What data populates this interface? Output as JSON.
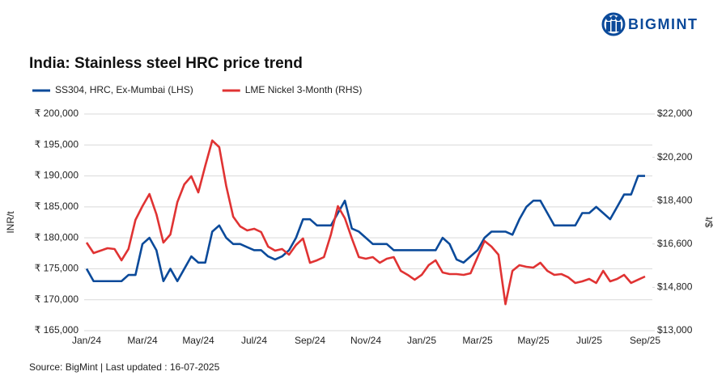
{
  "brand": "BIGMINT",
  "source": "Source: BigMint | Last updated : 16-07-2025",
  "chart_data": {
    "type": "line",
    "title": "India: Stainless steel HRC price trend",
    "y_label": "INR/t",
    "y2_label": "$/t",
    "categories": [
      "Jan/24",
      null,
      null,
      null,
      null,
      null,
      null,
      null,
      "Mar/24",
      null,
      null,
      null,
      null,
      null,
      null,
      null,
      "May/24",
      null,
      null,
      null,
      null,
      null,
      null,
      null,
      "Jul/24",
      null,
      null,
      null,
      null,
      null,
      null,
      null,
      "Sep/24",
      null,
      null,
      null,
      null,
      null,
      null,
      null,
      "Nov/24",
      null,
      null,
      null,
      null,
      null,
      null,
      null,
      "Jan/25",
      null,
      null,
      null,
      null,
      null,
      null,
      null,
      "Mar/25",
      null,
      null,
      null,
      null,
      null,
      null,
      null,
      "May/25",
      null,
      null,
      null,
      null,
      null,
      null,
      null,
      "Jul/25",
      null,
      null,
      null,
      null,
      null,
      null,
      null,
      "Sep/25"
    ],
    "series": [
      {
        "name": "SS304, HRC, Ex-Mumbai (LHS)",
        "color": "#0b4a9a",
        "axis": "y",
        "values": [
          175000,
          173000,
          173000,
          173000,
          173000,
          173000,
          174000,
          174000,
          179000,
          180000,
          178000,
          173000,
          175000,
          173000,
          175000,
          177000,
          176000,
          176000,
          181000,
          182000,
          180000,
          179000,
          179000,
          178500,
          178000,
          178000,
          177000,
          176500,
          177000,
          178000,
          180000,
          183000,
          183000,
          182000,
          182000,
          182000,
          184000,
          186000,
          181500,
          181000,
          180000,
          179000,
          179000,
          179000,
          178000,
          178000,
          178000,
          178000,
          178000,
          178000,
          178000,
          180000,
          179000,
          176500,
          176000,
          177000,
          178000,
          180000,
          181000,
          181000,
          181000,
          180500,
          183000,
          185000,
          186000,
          186000,
          184000,
          182000,
          182000,
          182000,
          182000,
          184000,
          184000,
          185000,
          184000,
          183000,
          185000,
          187000,
          187000,
          190000,
          190000
        ]
      },
      {
        "name": "LME Nickel 3-Month (RHS)",
        "color": "#e03333",
        "axis": "y2",
        "values": [
          16660,
          16224,
          16325,
          16425,
          16392,
          15922,
          16392,
          17601,
          18172,
          18676,
          17836,
          16660,
          16997,
          18340,
          19079,
          19414,
          18743,
          19851,
          20900,
          20623,
          19012,
          17735,
          17332,
          17164,
          17232,
          17097,
          16493,
          16325,
          16392,
          16157,
          16560,
          16829,
          15821,
          15922,
          16056,
          16997,
          18172,
          17668,
          16829,
          16056,
          15990,
          16056,
          15821,
          15990,
          16056,
          15486,
          15318,
          15116,
          15318,
          15721,
          15922,
          15418,
          15351,
          15351,
          15318,
          15385,
          16056,
          16728,
          16493,
          16157,
          14100,
          15486,
          15721,
          15653,
          15620,
          15821,
          15486,
          15318,
          15351,
          15217,
          14982,
          15049,
          15150,
          14982,
          15486,
          15049,
          15150,
          15318,
          14982,
          15116,
          15250
        ]
      }
    ],
    "ylim": [
      165000,
      200000
    ],
    "yticks": [
      {
        "value": 165000,
        "label": "₹ 165,000"
      },
      {
        "value": 170000,
        "label": "₹ 170,000"
      },
      {
        "value": 175000,
        "label": "₹ 175,000"
      },
      {
        "value": 180000,
        "label": "₹ 180,000"
      },
      {
        "value": 185000,
        "label": "₹ 185,000"
      },
      {
        "value": 190000,
        "label": "₹ 190,000"
      },
      {
        "value": 195000,
        "label": "₹ 195,000"
      },
      {
        "value": 200000,
        "label": "₹ 200,000"
      }
    ],
    "y2lim": [
      13000,
      22000
    ],
    "y2ticks": [
      {
        "value": 13000,
        "label": "$13,000"
      },
      {
        "value": 14800,
        "label": "$14,800"
      },
      {
        "value": 16600,
        "label": "$16,600"
      },
      {
        "value": 18400,
        "label": "$18,400"
      },
      {
        "value": 20200,
        "label": "$20,200"
      },
      {
        "value": 22000,
        "label": "$22,000"
      }
    ],
    "grid": true
  }
}
